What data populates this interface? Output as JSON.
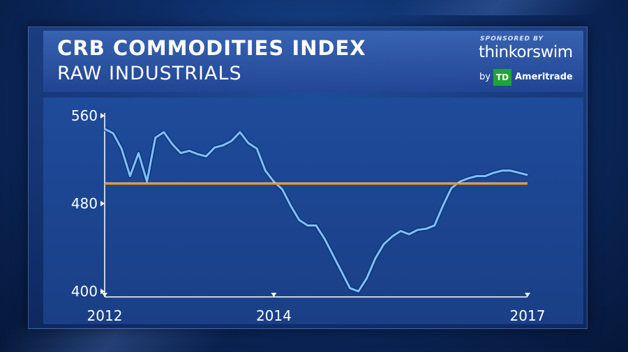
{
  "header": {
    "title": "CRB COMMODITIES INDEX",
    "subtitle": "RAW INDUSTRIALS"
  },
  "sponsor": {
    "label": "SPONSORED BY",
    "name": "thinkorswim",
    "by": "by",
    "logo_text": "TD",
    "company": "Ameritrade"
  },
  "colors": {
    "line": "#7fbfff",
    "reference_line": "#f08a1c",
    "text": "#ffffff"
  },
  "chart_data": {
    "type": "line",
    "title": "CRB COMMODITIES INDEX",
    "subtitle": "RAW INDUSTRIALS",
    "xlabel": "",
    "ylabel": "",
    "x_tick_labels": [
      "2012",
      "2014",
      "2017"
    ],
    "x_ticks": [
      2012,
      2014,
      2017
    ],
    "y_ticks": [
      400,
      480,
      560
    ],
    "xlim": [
      2012,
      2017
    ],
    "ylim": [
      400,
      560
    ],
    "grid": false,
    "reference_line": {
      "y": 498
    },
    "series": [
      {
        "x": [
          2012.0,
          2012.1,
          2012.2,
          2012.3,
          2012.4,
          2012.5,
          2012.6,
          2012.7,
          2012.8,
          2012.9,
          2013.0,
          2013.1,
          2013.2,
          2013.3,
          2013.4,
          2013.5,
          2013.6,
          2013.7,
          2013.8,
          2013.9,
          2014.0,
          2014.1,
          2014.2,
          2014.3,
          2014.4,
          2014.5,
          2014.6,
          2014.7,
          2014.8,
          2014.9,
          2015.0,
          2015.1,
          2015.2,
          2015.3,
          2015.4,
          2015.5,
          2015.6,
          2015.7,
          2015.8,
          2015.9,
          2016.0,
          2016.1,
          2016.2,
          2016.3,
          2016.4,
          2016.5,
          2016.6,
          2016.7,
          2016.8,
          2016.9,
          2017.0
        ],
        "values": [
          548,
          544,
          530,
          505,
          526,
          500,
          540,
          545,
          534,
          526,
          528,
          525,
          523,
          531,
          533,
          537,
          545,
          535,
          530,
          510,
          500,
          493,
          478,
          465,
          460,
          460,
          448,
          433,
          418,
          403,
          400,
          412,
          430,
          443,
          450,
          455,
          452,
          456,
          457,
          460,
          478,
          494,
          500,
          503,
          505,
          505,
          508,
          510,
          510,
          508,
          506
        ]
      }
    ]
  }
}
